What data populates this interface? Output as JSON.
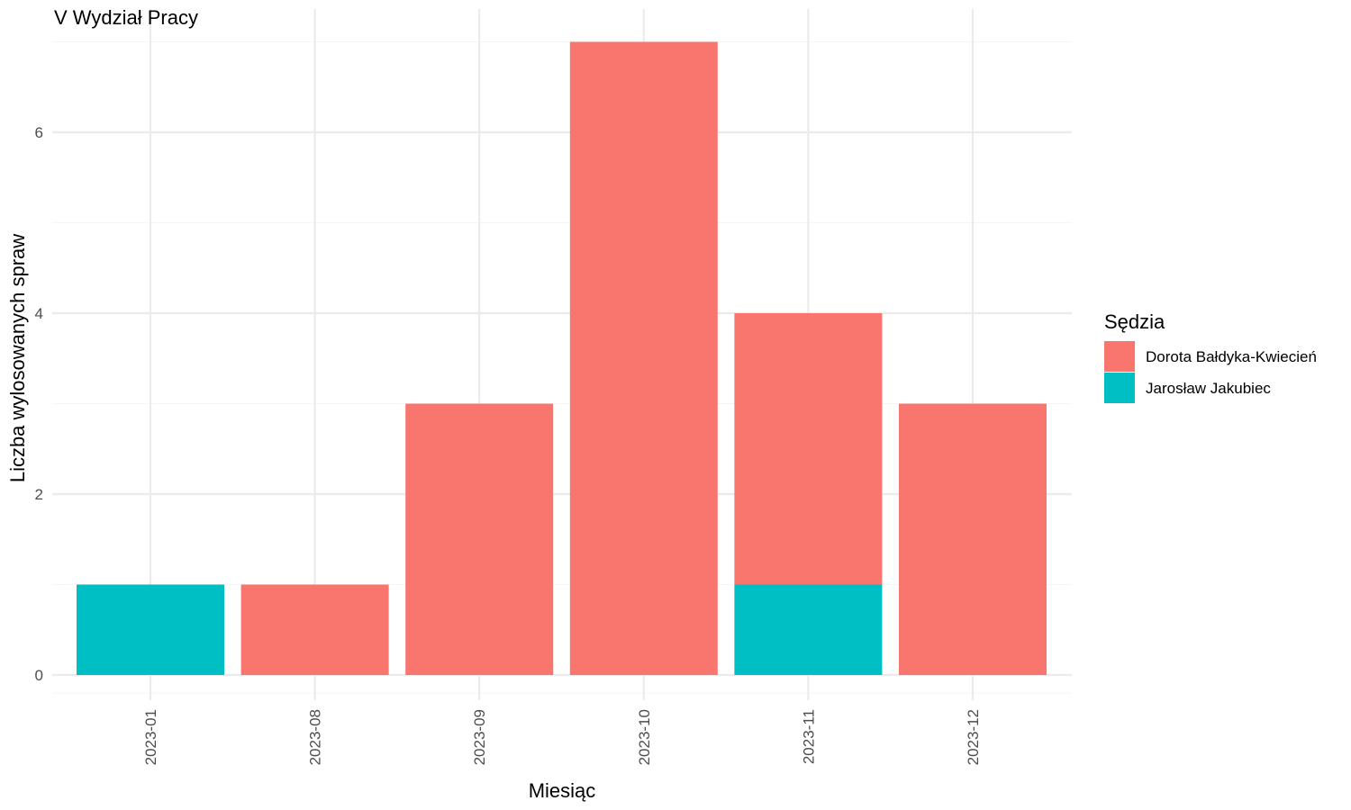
{
  "chart_data": {
    "type": "bar",
    "stacked": true,
    "title": "V Wydział Pracy",
    "xlabel": "Miesiąc",
    "ylabel": "Liczba wylosowanych spraw",
    "categories": [
      "2023-01",
      "2023-08",
      "2023-09",
      "2023-10",
      "2023-11",
      "2023-12"
    ],
    "ylim": [
      0,
      7
    ],
    "yticks": [
      0,
      2,
      4,
      6
    ],
    "ytick_labels": [
      "0",
      "2",
      "4",
      "6"
    ],
    "grid": true,
    "legend": {
      "title": "Sędzia",
      "position": "right"
    },
    "series": [
      {
        "name": "Jarosław Jakubiec",
        "color": "#00BFC4",
        "values": [
          1,
          0,
          0,
          0,
          1,
          0
        ]
      },
      {
        "name": "Dorota Bałdyka-Kwiecień",
        "color": "#F8766D",
        "values": [
          0,
          1,
          3,
          7,
          3,
          3
        ]
      }
    ],
    "legend_order": [
      "Dorota Bałdyka-Kwiecień",
      "Jarosław Jakubiec"
    ]
  }
}
